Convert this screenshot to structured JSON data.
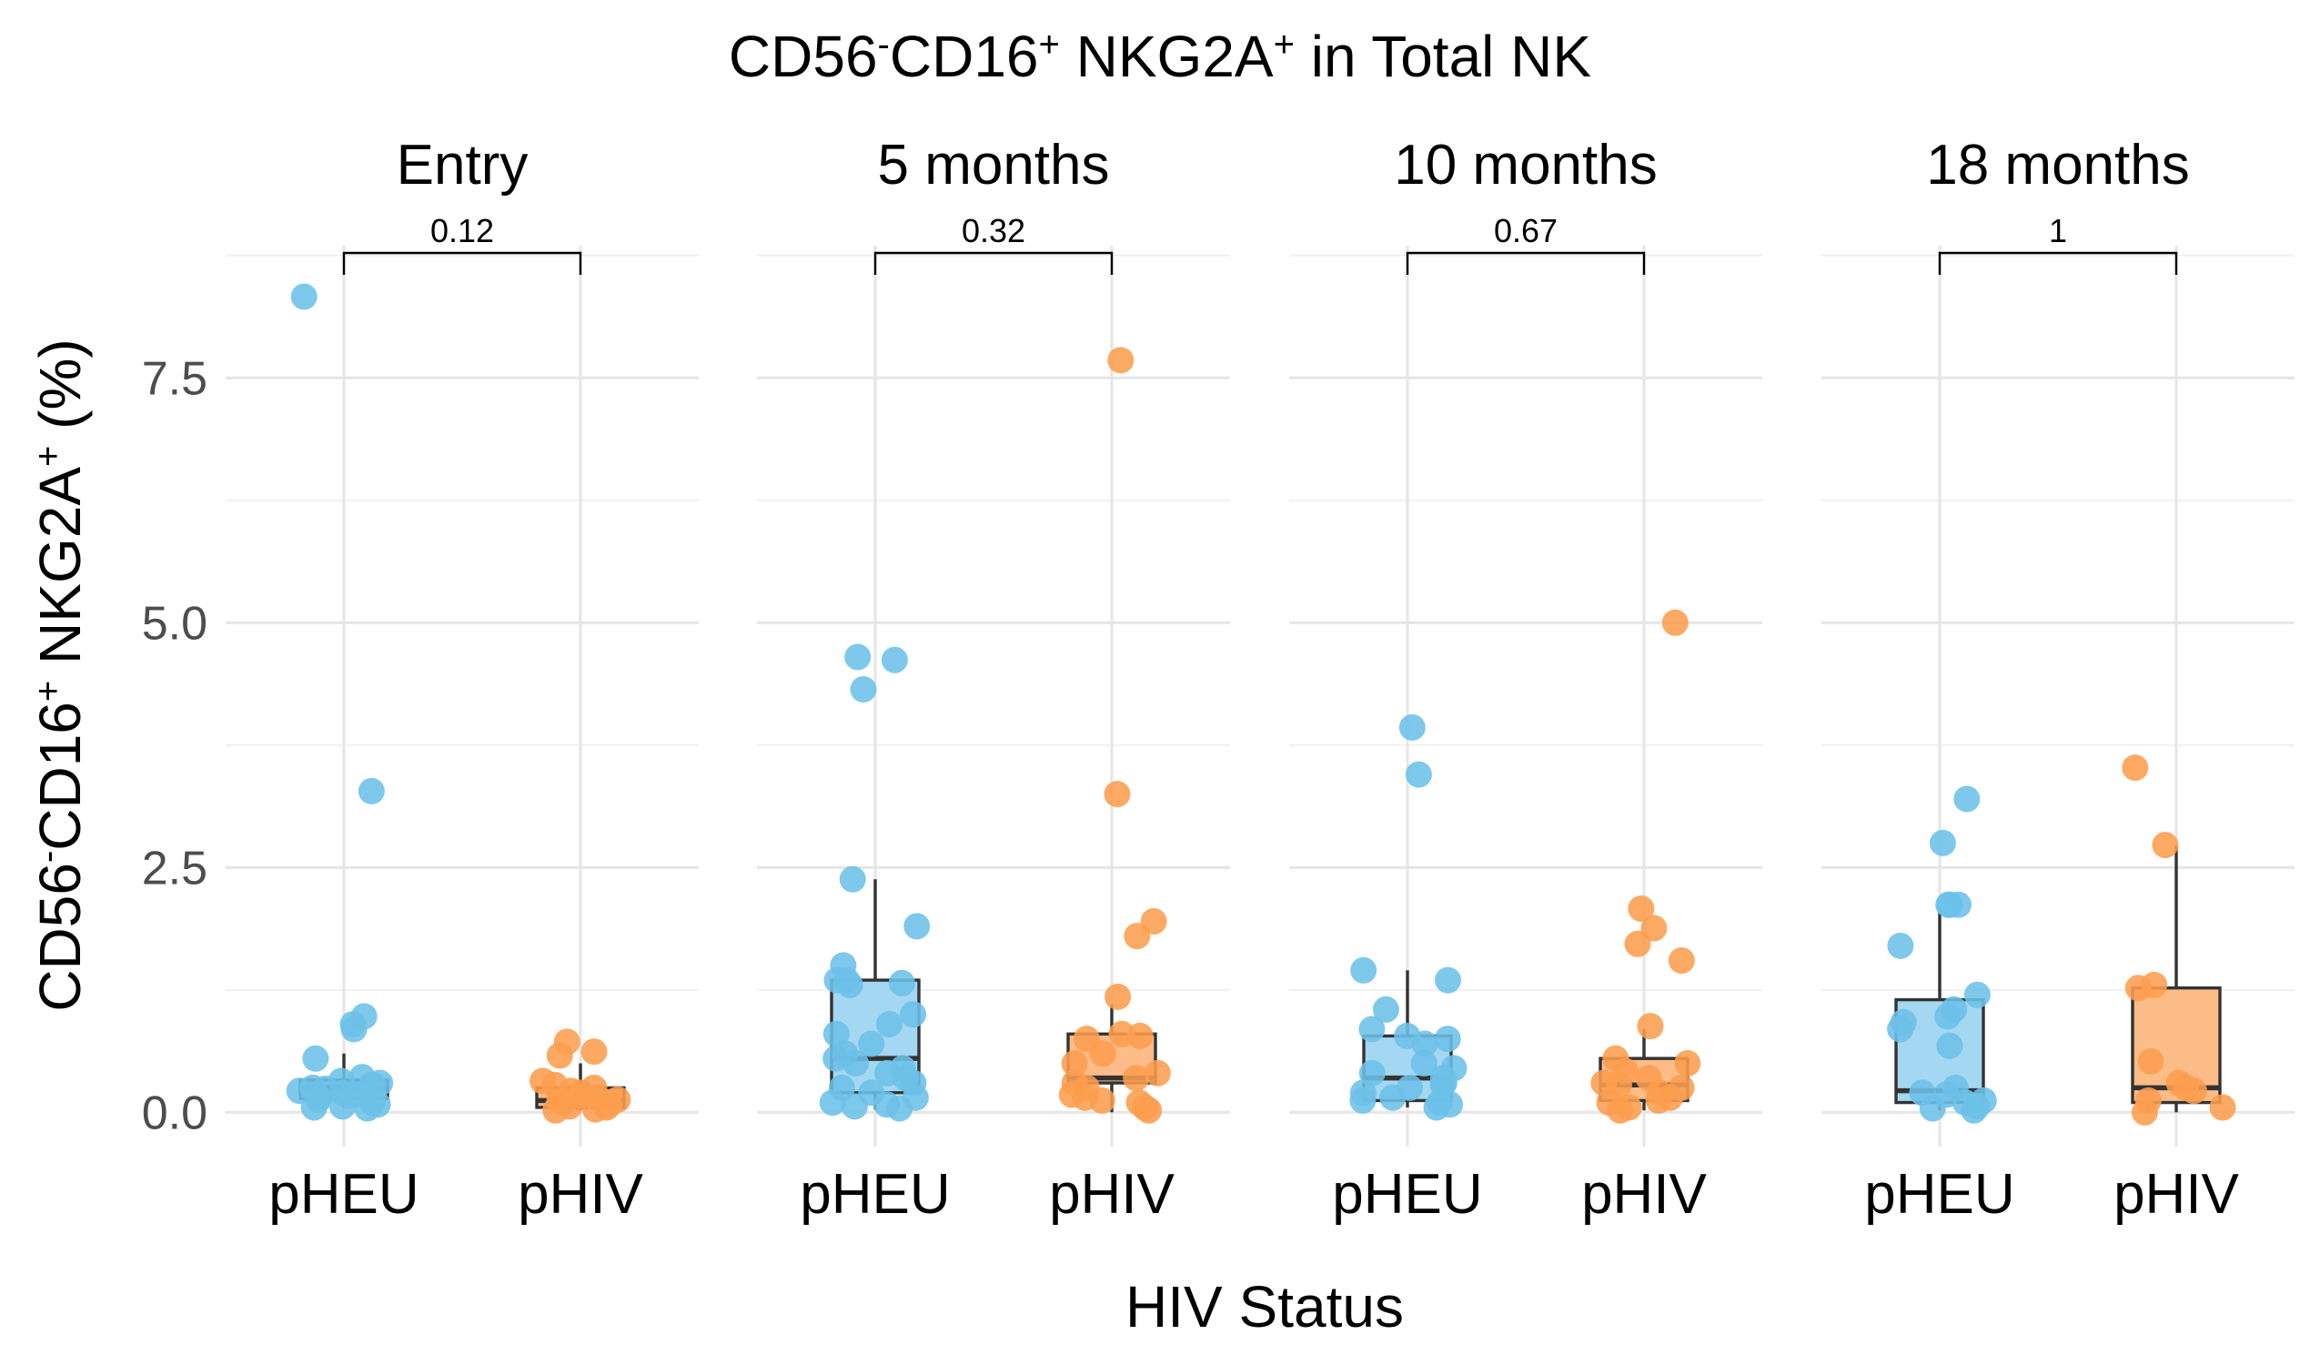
{
  "chart_data": {
    "type": "box+jitter",
    "title": "CD56⁻CD16⁺ NKG2A⁺ in Total NK",
    "title_parts": [
      {
        "t": "CD56",
        "s": "n"
      },
      {
        "t": "-",
        "s": "sup"
      },
      {
        "t": "CD16",
        "s": "n"
      },
      {
        "t": "+",
        "s": "sup"
      },
      {
        "t": " NKG2A",
        "s": "n"
      },
      {
        "t": "+",
        "s": "sup"
      },
      {
        "t": " in Total NK",
        "s": "n"
      }
    ],
    "xlabel": "HIV Status",
    "ylabel": "CD56⁻CD16⁺ NKG2A⁺ (%)",
    "ylabel_parts": [
      {
        "t": "CD56",
        "s": "n"
      },
      {
        "t": "-",
        "s": "sup"
      },
      {
        "t": "CD16",
        "s": "n"
      },
      {
        "t": "+",
        "s": "sup"
      },
      {
        "t": " NKG2A",
        "s": "n"
      },
      {
        "t": "+",
        "s": "sup"
      },
      {
        "t": " (%)",
        "s": "n"
      }
    ],
    "ylim": [
      -0.35,
      8.85
    ],
    "yticks": [
      0.0,
      2.5,
      5.0,
      7.5
    ],
    "ytick_labels": [
      "0.0",
      "2.5",
      "5.0",
      "7.5"
    ],
    "y_minor": [
      1.25,
      3.75,
      6.25,
      8.75
    ],
    "grid": true,
    "categories": [
      "pHEU",
      "pHIV"
    ],
    "colors": {
      "pHEU": "#6cc0e8",
      "pHIV": "#fc9d4f"
    },
    "box_fill": {
      "pHEU": "#a4d7f1",
      "pHIV": "#fcbc88"
    },
    "panels": [
      {
        "label": "Entry",
        "p_value": "0.12",
        "groups": [
          {
            "name": "pHEU",
            "box": {
              "min": 0.05,
              "q1": 0.14,
              "median": 0.25,
              "q3": 0.33,
              "max": 0.6
            },
            "points": [
              8.33,
              3.28,
              0.98,
              0.9,
              0.85,
              0.55,
              0.36,
              0.32,
              0.3,
              0.28,
              0.27,
              0.25,
              0.24,
              0.22,
              0.2,
              0.18,
              0.17,
              0.15,
              0.13,
              0.1,
              0.08,
              0.06,
              0.05,
              0.04
            ]
          },
          {
            "name": "pHIV",
            "box": {
              "min": 0.02,
              "q1": 0.05,
              "median": 0.12,
              "q3": 0.25,
              "max": 0.5
            },
            "points": [
              0.72,
              0.62,
              0.58,
              0.32,
              0.28,
              0.25,
              0.22,
              0.2,
              0.17,
              0.15,
              0.13,
              0.12,
              0.1,
              0.08,
              0.06,
              0.05,
              0.03,
              0.02
            ]
          }
        ]
      },
      {
        "label": "5 months",
        "p_value": "0.32",
        "groups": [
          {
            "name": "pHEU",
            "box": {
              "min": 0.03,
              "q1": 0.2,
              "median": 0.55,
              "q3": 1.35,
              "max": 2.38
            },
            "points": [
              4.65,
              4.62,
              4.32,
              2.38,
              1.9,
              1.5,
              1.35,
              1.35,
              1.32,
              1.3,
              1.0,
              0.9,
              0.8,
              0.7,
              0.6,
              0.55,
              0.5,
              0.45,
              0.4,
              0.35,
              0.3,
              0.25,
              0.2,
              0.15,
              0.1,
              0.08,
              0.06,
              0.04
            ]
          },
          {
            "name": "pHIV",
            "box": {
              "min": 0.0,
              "q1": 0.3,
              "median": 0.35,
              "q3": 0.8,
              "max": 1.1
            },
            "points": [
              7.68,
              3.25,
              1.95,
              1.8,
              1.18,
              0.8,
              0.78,
              0.75,
              0.6,
              0.5,
              0.4,
              0.35,
              0.3,
              0.25,
              0.18,
              0.15,
              0.12,
              0.1,
              0.05,
              0.02
            ]
          }
        ]
      },
      {
        "label": "10 months",
        "p_value": "0.67",
        "groups": [
          {
            "name": "pHEU",
            "box": {
              "min": 0.05,
              "q1": 0.12,
              "median": 0.35,
              "q3": 0.78,
              "max": 1.45
            },
            "points": [
              3.93,
              3.45,
              1.45,
              1.35,
              1.05,
              0.85,
              0.78,
              0.75,
              0.7,
              0.5,
              0.45,
              0.4,
              0.35,
              0.3,
              0.28,
              0.25,
              0.2,
              0.15,
              0.12,
              0.1,
              0.08,
              0.05
            ]
          },
          {
            "name": "pHIV",
            "box": {
              "min": 0.02,
              "q1": 0.12,
              "median": 0.28,
              "q3": 0.55,
              "max": 0.85
            },
            "points": [
              5.0,
              2.08,
              1.88,
              1.72,
              1.55,
              0.88,
              0.55,
              0.5,
              0.42,
              0.35,
              0.3,
              0.28,
              0.25,
              0.2,
              0.15,
              0.12,
              0.1,
              0.05,
              0.02
            ]
          }
        ]
      },
      {
        "label": "18 months",
        "p_value": "1",
        "groups": [
          {
            "name": "pHEU",
            "box": {
              "min": 0.02,
              "q1": 0.1,
              "median": 0.22,
              "q3": 1.15,
              "max": 2.1
            },
            "points": [
              3.2,
              2.75,
              2.12,
              2.12,
              2.12,
              1.7,
              1.2,
              1.05,
              0.98,
              0.92,
              0.85,
              0.68,
              0.25,
              0.2,
              0.18,
              0.12,
              0.1,
              0.06,
              0.04,
              0.02
            ]
          },
          {
            "name": "pHIV",
            "box": {
              "min": 0.0,
              "q1": 0.1,
              "median": 0.25,
              "q3": 1.27,
              "max": 2.72
            },
            "points": [
              3.52,
              2.73,
              1.3,
              1.27,
              0.52,
              0.3,
              0.25,
              0.22,
              0.12,
              0.05,
              0.0
            ]
          }
        ]
      }
    ]
  }
}
